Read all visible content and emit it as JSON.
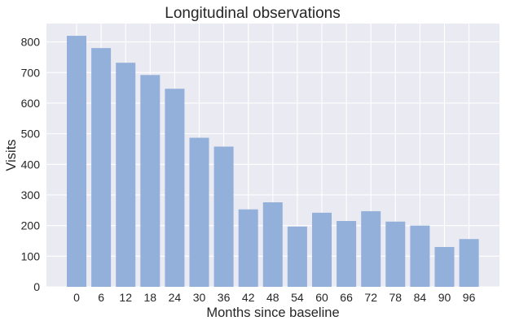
{
  "chart_data": {
    "type": "bar",
    "title": "Longitudinal observations",
    "xlabel": "Months since baseline",
    "ylabel": "Visits",
    "categories": [
      "0",
      "6",
      "12",
      "18",
      "24",
      "30",
      "36",
      "42",
      "48",
      "54",
      "60",
      "66",
      "72",
      "78",
      "84",
      "90",
      "96"
    ],
    "values": [
      820,
      780,
      732,
      692,
      647,
      487,
      458,
      253,
      276,
      197,
      242,
      215,
      247,
      213,
      200,
      130,
      156
    ],
    "ylim": [
      0,
      860
    ],
    "yticks": [
      0,
      100,
      200,
      300,
      400,
      500,
      600,
      700,
      800
    ],
    "grid": true,
    "legend": "none",
    "colors": {
      "bar": "#92b0da",
      "plot_background": "#eaeaf2",
      "grid": "#ffffff",
      "text": "#262626"
    }
  }
}
